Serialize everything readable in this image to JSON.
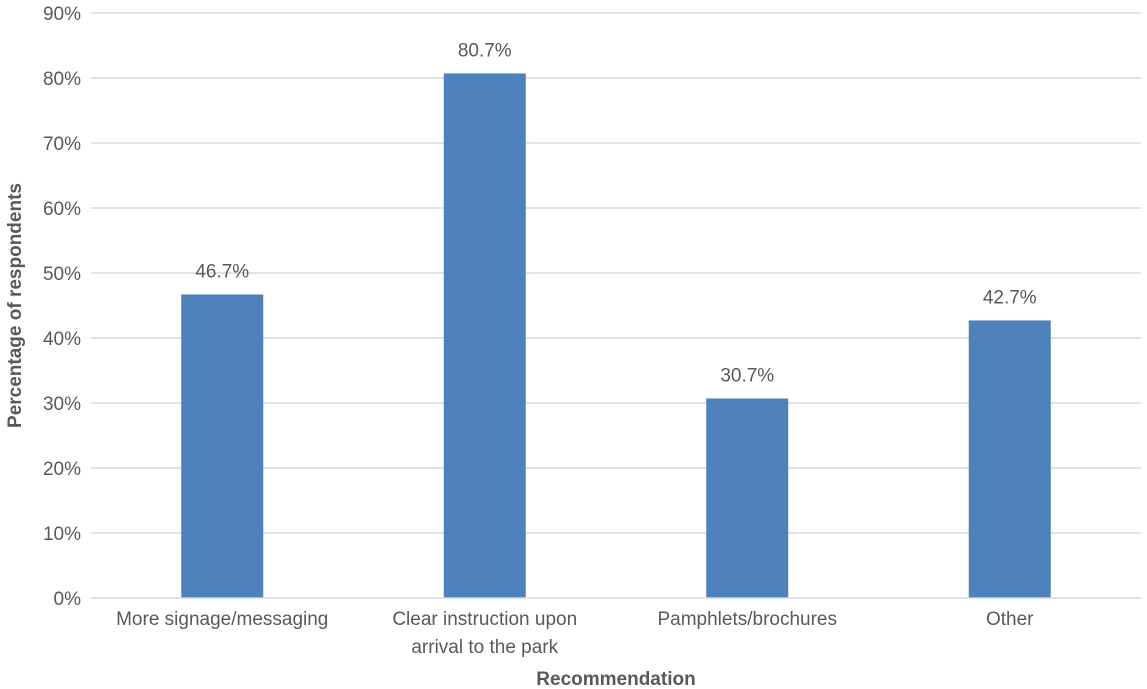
{
  "chart_data": {
    "type": "bar",
    "categories": [
      [
        "More signage/messaging"
      ],
      [
        "Clear instruction upon",
        "arrival to the park"
      ],
      [
        "Pamphlets/brochures"
      ],
      [
        "Other"
      ]
    ],
    "values": [
      46.7,
      80.7,
      30.7,
      42.7
    ],
    "data_labels": [
      "46.7%",
      "80.7%",
      "30.7%",
      "42.7%"
    ],
    "title": "",
    "xlabel": "Recommendation",
    "ylabel": "Percentage of respondents",
    "ylim": [
      0,
      90
    ],
    "yticks": [
      0,
      10,
      20,
      30,
      40,
      50,
      60,
      70,
      80,
      90
    ],
    "ytick_labels": [
      "0%",
      "10%",
      "20%",
      "30%",
      "40%",
      "50%",
      "60%",
      "70%",
      "80%",
      "90%"
    ],
    "grid": true,
    "legend": "none",
    "bar_color": "#4f81bd"
  }
}
